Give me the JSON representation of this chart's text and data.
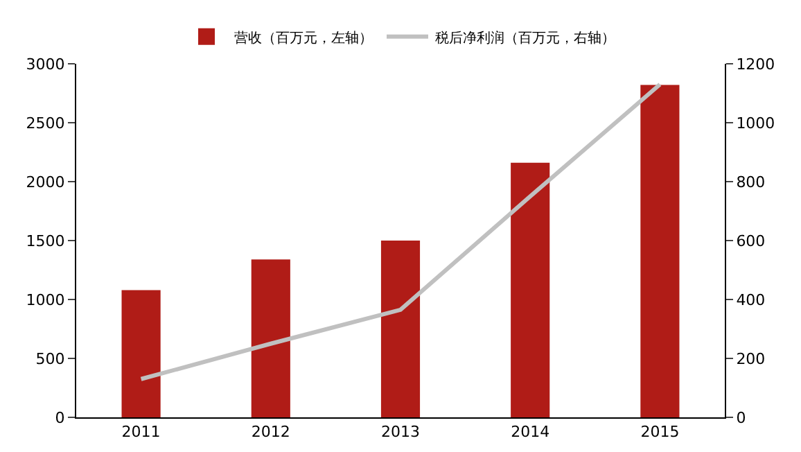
{
  "chart_data": {
    "type": "bar",
    "categories": [
      "2011",
      "2012",
      "2013",
      "2014",
      "2015"
    ],
    "series": [
      {
        "name": "营收（百万元，左轴）",
        "color": "#b01c17",
        "values": [
          1080,
          1340,
          1500,
          2160,
          2820
        ]
      },
      {
        "name": "税后净利润（百万元，右轴）",
        "type": "line",
        "axis": "y2",
        "color": "#c0c0c0",
        "values": [
          130,
          250,
          365,
          750,
          1130
        ]
      }
    ],
    "ylim": [
      0,
      3000
    ],
    "yticks": [
      0,
      500,
      1000,
      1500,
      2000,
      2500,
      3000
    ],
    "y2lim": [
      0,
      1200
    ],
    "y2ticks": [
      0,
      200,
      400,
      600,
      800,
      1000,
      1200
    ],
    "grid": false,
    "legend": "top",
    "marker": "none",
    "line_style": "solid"
  }
}
